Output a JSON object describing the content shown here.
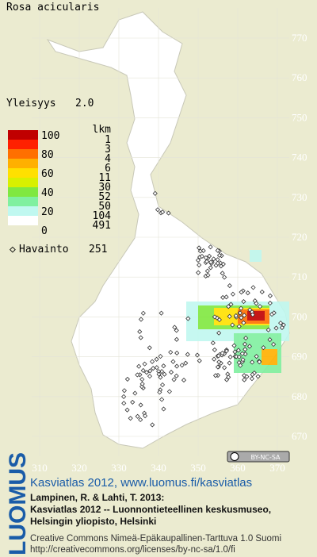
{
  "title": "Rosa acicularis",
  "frequency": {
    "label": "Yleisyys",
    "value": "2.0"
  },
  "legend": {
    "scale": [
      100,
      80,
      60,
      40,
      20,
      0
    ],
    "counts_header": "lkm",
    "counts": [
      1,
      3,
      4,
      6,
      11,
      30,
      52,
      50,
      104,
      491
    ],
    "colors": [
      "#c00000",
      "#ff2000",
      "#ff7000",
      "#ffb000",
      "#ffe000",
      "#d8f000",
      "#80e840",
      "#80f0a0",
      "#c0f8f0",
      "#ffffff"
    ]
  },
  "observations": {
    "label": "Havainto",
    "count": 251
  },
  "map": {
    "x_ticks": [
      310,
      320,
      330,
      340,
      350,
      360,
      370
    ],
    "y_ticks": [
      770,
      760,
      750,
      740,
      730,
      720,
      710,
      700,
      690,
      680,
      670
    ],
    "license_badge": "BY-NC-SA"
  },
  "footer": {
    "logo": "LUOMUS",
    "headline": "Kasviatlas 2012, www.luomus.fi/kasviatlas",
    "citation": [
      "Lampinen, R. & Lahti, T. 2013:",
      "Kasviatlas 2012 -- Luonnontieteellinen keskusmuseo,",
      "Helsingin yliopisto, Helsinki"
    ],
    "license": [
      "Creative Commons Nimeä-Epäkaupallinen-Tarttuva 1.0 Suomi",
      "http://creativecommons.org/licenses/by-nc-sa/1.0/fi"
    ]
  }
}
